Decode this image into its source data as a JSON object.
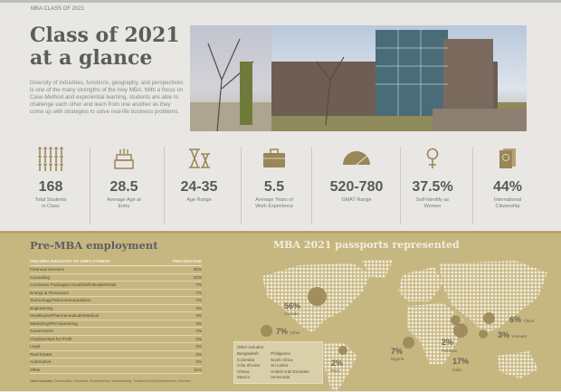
{
  "kicker": "MBA CLASS OF 2021",
  "title": "Class of 2021 at a glance",
  "intro": "Diversity of industries, functions, geography, and perspectives is one of the many strengths of the Ivey MBA. With a focus on Case-Method and experiential learning, students are able to challenge each other and learn from one another as they come up with strategies to solve real-life business problems.",
  "stats": [
    {
      "icon": "people-icon",
      "value": "168",
      "label": "Total Students in Class"
    },
    {
      "icon": "cake-icon",
      "value": "28.5",
      "label": "Average Age at Entry"
    },
    {
      "icon": "hourglass-icon",
      "value": "24-35",
      "label": "Age Range"
    },
    {
      "icon": "briefcase-icon",
      "value": "5.5",
      "label": "Average Years of Work Experience"
    },
    {
      "icon": "gauge-icon",
      "value": "520-780",
      "label": "GMAT Range"
    },
    {
      "icon": "female-icon",
      "value": "37.5%",
      "label": "Self-Identify as Women"
    },
    {
      "icon": "passport-icon",
      "value": "44%",
      "label": "International Citizenship"
    }
  ],
  "employment": {
    "title": "Pre-MBA employment",
    "col1": "PRE-MBA INDUSTRY OF EMPLOYMENT",
    "col2": "PERCENTAGE",
    "rows": [
      [
        "Financial Services",
        "25%"
      ],
      [
        "Consulting",
        "22%"
      ],
      [
        "Consumer Packaged Goods/Wholesale/Retail",
        "7%"
      ],
      [
        "Energy & Resources",
        "7%"
      ],
      [
        "Technology/Telecommunications",
        "7%"
      ],
      [
        "Engineering",
        "4%"
      ],
      [
        "Healthcare/Pharmaceuticals/Medical",
        "4%"
      ],
      [
        "Marketing/PR/Advertising",
        "4%"
      ],
      [
        "Government",
        "3%"
      ],
      [
        "Charities/Not-for-Profit",
        "2%"
      ],
      [
        "Legal",
        "2%"
      ],
      [
        "Real Estate",
        "2%"
      ],
      [
        "Automotive",
        "2%"
      ],
      [
        "Other",
        "11%"
      ]
    ],
    "note_label": "Other includes:",
    "note": "Construction, Education, Environmental, Manufacturing, Tourism/Leisure/Entertainment, Unknown"
  },
  "passports": {
    "title": "MBA 2021 passports represented",
    "items": [
      {
        "pct": "56%",
        "name": "Canada"
      },
      {
        "pct": "7%",
        "name": "Other"
      },
      {
        "pct": "2%",
        "name": "Peru"
      },
      {
        "pct": "7%",
        "name": "Nigeria"
      },
      {
        "pct": "2%",
        "name": "Pakistan"
      },
      {
        "pct": "17%",
        "name": "India"
      },
      {
        "pct": "6%",
        "name": "China"
      },
      {
        "pct": "3%",
        "name": "Vietnam"
      }
    ],
    "other_title": "Other includes:",
    "other_col1": [
      "Bangladesh",
      "Colombia",
      "Côte d'Ivoire",
      "Ghana",
      "Mexico"
    ],
    "other_col2": [
      "Philippines",
      "South Africa",
      "Sri Lanka",
      "United Arab Emirates",
      "Venezuela"
    ]
  }
}
